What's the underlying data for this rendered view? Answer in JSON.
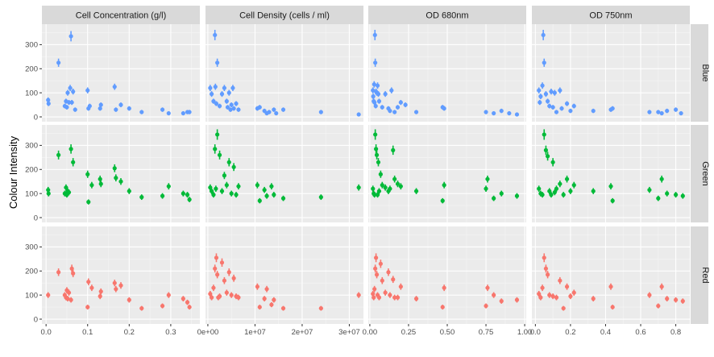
{
  "chart_data": {
    "type": "scatter",
    "ylabel": "Colour Intensity",
    "xlabel": "",
    "columns": [
      {
        "label": "Cell Concentration (g/l)",
        "xlim": [
          -0.01,
          0.37
        ],
        "ticks": [
          0.0,
          0.1,
          0.2,
          0.3
        ],
        "tick_labels": [
          "0.0",
          "0.1",
          "0.2",
          "0.3"
        ]
      },
      {
        "label": "Cell Density (cells / ml)",
        "xlim": [
          -500000,
          33000000
        ],
        "ticks": [
          0,
          10000000,
          20000000,
          30000000
        ],
        "tick_labels": [
          "0e+00",
          "1e+07",
          "2e+07",
          "3e+07"
        ]
      },
      {
        "label": "OD 680nm",
        "xlim": [
          -0.01,
          1.01
        ],
        "ticks": [
          0.0,
          0.25,
          0.5,
          0.75,
          1.0
        ],
        "tick_labels": [
          "0.00",
          "0.25",
          "0.50",
          "0.75",
          "1.00"
        ]
      },
      {
        "label": "OD 750nm",
        "xlim": [
          -0.02,
          0.88
        ],
        "ticks": [
          0.0,
          0.2,
          0.4,
          0.6,
          0.8
        ],
        "tick_labels": [
          "0.0",
          "0.2",
          "0.4",
          "0.6",
          "0.8"
        ]
      }
    ],
    "rows": [
      {
        "label": "Blue",
        "color": "#619CFF"
      },
      {
        "label": "Green",
        "color": "#00BA38"
      },
      {
        "label": "Red",
        "color": "#F8766D"
      }
    ],
    "ylim": [
      -20,
      385
    ],
    "yticks": [
      0,
      100,
      200,
      300
    ],
    "ytick_labels": [
      "0",
      "100",
      "200",
      "300"
    ],
    "points": {
      "Blue": {
        "x_conc": [
          0.005,
          0.006,
          0.03,
          0.045,
          0.048,
          0.05,
          0.052,
          0.055,
          0.058,
          0.06,
          0.062,
          0.065,
          0.07,
          0.1,
          0.102,
          0.105,
          0.13,
          0.132,
          0.165,
          0.168,
          0.18,
          0.2,
          0.23,
          0.28,
          0.295,
          0.33,
          0.34,
          0.345
        ],
        "y_conc": [
          70,
          55,
          225,
          45,
          65,
          40,
          100,
          60,
          120,
          335,
          60,
          105,
          30,
          110,
          35,
          45,
          35,
          50,
          125,
          30,
          50,
          35,
          20,
          30,
          15,
          15,
          20,
          20
        ],
        "x_dens": [
          500000,
          800000,
          1200000,
          1500000,
          1600000,
          1800000,
          2000000,
          2500000,
          3000000,
          3500000,
          4000000,
          4200000,
          4500000,
          4800000,
          5000000,
          5300000,
          5500000,
          6000000,
          6500000,
          10500000,
          11000000,
          12000000,
          12500000,
          13000000,
          14000000,
          14500000,
          16000000,
          24000000,
          32000000
        ],
        "y_dens": [
          120,
          95,
          65,
          340,
          125,
          55,
          225,
          45,
          95,
          120,
          65,
          40,
          100,
          30,
          50,
          120,
          35,
          55,
          30,
          35,
          40,
          25,
          15,
          20,
          30,
          15,
          30,
          20,
          10
        ],
        "x_od680": [
          0.02,
          0.022,
          0.025,
          0.028,
          0.03,
          0.033,
          0.035,
          0.038,
          0.04,
          0.045,
          0.05,
          0.055,
          0.06,
          0.08,
          0.1,
          0.12,
          0.13,
          0.14,
          0.16,
          0.18,
          0.2,
          0.23,
          0.3,
          0.47,
          0.48,
          0.75,
          0.8,
          0.85,
          0.9,
          0.95
        ],
        "y_od680": [
          110,
          85,
          65,
          135,
          60,
          340,
          225,
          45,
          105,
          100,
          130,
          95,
          65,
          40,
          95,
          35,
          25,
          110,
          20,
          40,
          60,
          50,
          20,
          40,
          35,
          20,
          15,
          25,
          15,
          10
        ],
        "x_od750": [
          0.02,
          0.025,
          0.03,
          0.04,
          0.045,
          0.05,
          0.06,
          0.07,
          0.08,
          0.09,
          0.1,
          0.11,
          0.12,
          0.14,
          0.15,
          0.18,
          0.2,
          0.22,
          0.33,
          0.43,
          0.44,
          0.65,
          0.7,
          0.72,
          0.75,
          0.8,
          0.83
        ],
        "y_od750": [
          110,
          60,
          85,
          130,
          340,
          225,
          95,
          65,
          45,
          105,
          40,
          100,
          20,
          110,
          35,
          55,
          25,
          45,
          25,
          30,
          35,
          20,
          20,
          15,
          25,
          30,
          15
        ]
      },
      "Green": {
        "x_conc": [
          0.005,
          0.006,
          0.03,
          0.045,
          0.048,
          0.05,
          0.052,
          0.055,
          0.06,
          0.065,
          0.1,
          0.102,
          0.11,
          0.13,
          0.132,
          0.165,
          0.168,
          0.18,
          0.2,
          0.23,
          0.28,
          0.295,
          0.33,
          0.34,
          0.345
        ],
        "y_conc": [
          115,
          100,
          260,
          100,
          125,
          95,
          110,
          105,
          285,
          230,
          180,
          65,
          135,
          160,
          140,
          205,
          165,
          150,
          110,
          85,
          90,
          130,
          100,
          95,
          75
        ],
        "x_dens": [
          500000,
          800000,
          1200000,
          1500000,
          1700000,
          2000000,
          2500000,
          3000000,
          3500000,
          4000000,
          4500000,
          5000000,
          5500000,
          6000000,
          6500000,
          10500000,
          11000000,
          12000000,
          12500000,
          13500000,
          14000000,
          16000000,
          24000000,
          32000000
        ],
        "y_dens": [
          125,
          110,
          95,
          285,
          120,
          345,
          260,
          110,
          175,
          135,
          230,
          100,
          210,
          95,
          130,
          135,
          70,
          115,
          90,
          130,
          95,
          80,
          85,
          125
        ],
        "x_od680": [
          0.02,
          0.025,
          0.03,
          0.035,
          0.04,
          0.045,
          0.05,
          0.055,
          0.06,
          0.07,
          0.08,
          0.1,
          0.12,
          0.13,
          0.15,
          0.16,
          0.18,
          0.2,
          0.3,
          0.47,
          0.48,
          0.75,
          0.76,
          0.8,
          0.85,
          0.95
        ],
        "y_od680": [
          120,
          100,
          95,
          345,
          285,
          260,
          95,
          230,
          110,
          180,
          135,
          125,
          110,
          120,
          280,
          160,
          140,
          130,
          110,
          70,
          135,
          120,
          160,
          80,
          100,
          90
        ],
        "x_od750": [
          0.02,
          0.03,
          0.04,
          0.05,
          0.06,
          0.07,
          0.08,
          0.09,
          0.1,
          0.11,
          0.12,
          0.14,
          0.16,
          0.18,
          0.2,
          0.22,
          0.33,
          0.43,
          0.44,
          0.65,
          0.7,
          0.72,
          0.75,
          0.8,
          0.84
        ],
        "y_od750": [
          120,
          100,
          95,
          345,
          280,
          255,
          110,
          95,
          230,
          105,
          120,
          140,
          95,
          160,
          110,
          135,
          110,
          130,
          70,
          115,
          80,
          160,
          100,
          95,
          90
        ]
      },
      "Red": {
        "x_conc": [
          0.005,
          0.03,
          0.045,
          0.048,
          0.05,
          0.052,
          0.055,
          0.06,
          0.062,
          0.065,
          0.1,
          0.102,
          0.11,
          0.13,
          0.132,
          0.165,
          0.168,
          0.18,
          0.2,
          0.23,
          0.28,
          0.295,
          0.33,
          0.34,
          0.345
        ],
        "y_conc": [
          100,
          195,
          100,
          90,
          120,
          85,
          110,
          80,
          210,
          190,
          50,
          155,
          130,
          95,
          115,
          150,
          125,
          140,
          80,
          45,
          55,
          100,
          85,
          70,
          50
        ],
        "x_dens": [
          500000,
          800000,
          1200000,
          1500000,
          1800000,
          2000000,
          2200000,
          2500000,
          3000000,
          3500000,
          4000000,
          4500000,
          5000000,
          5500000,
          6000000,
          6500000,
          10500000,
          11000000,
          12000000,
          12500000,
          13500000,
          14000000,
          16000000,
          24000000,
          32000000
        ],
        "y_dens": [
          105,
          90,
          130,
          210,
          255,
          185,
          90,
          95,
          235,
          160,
          110,
          195,
          100,
          170,
          95,
          90,
          135,
          50,
          85,
          125,
          60,
          80,
          45,
          45,
          100
        ],
        "x_od680": [
          0.02,
          0.025,
          0.03,
          0.035,
          0.04,
          0.045,
          0.05,
          0.06,
          0.07,
          0.08,
          0.1,
          0.12,
          0.13,
          0.15,
          0.16,
          0.18,
          0.2,
          0.3,
          0.47,
          0.48,
          0.75,
          0.76,
          0.8,
          0.85,
          0.95
        ],
        "y_od680": [
          105,
          90,
          125,
          210,
          255,
          185,
          100,
          90,
          230,
          160,
          110,
          195,
          100,
          165,
          90,
          90,
          135,
          85,
          50,
          130,
          55,
          130,
          100,
          75,
          80
        ],
        "x_od750": [
          0.02,
          0.03,
          0.04,
          0.05,
          0.06,
          0.07,
          0.08,
          0.1,
          0.12,
          0.14,
          0.16,
          0.18,
          0.2,
          0.22,
          0.33,
          0.43,
          0.44,
          0.65,
          0.7,
          0.72,
          0.75,
          0.8,
          0.84
        ],
        "y_od750": [
          105,
          90,
          130,
          255,
          210,
          185,
          100,
          95,
          90,
          160,
          45,
          135,
          95,
          110,
          85,
          135,
          50,
          100,
          55,
          135,
          85,
          80,
          75
        ]
      }
    }
  }
}
